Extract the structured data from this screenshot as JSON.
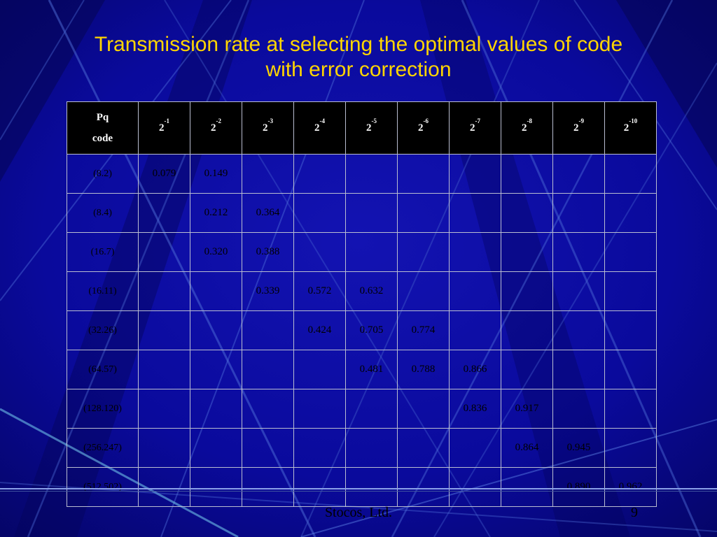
{
  "slide": {
    "title": {
      "line1": "Transmission rate at selecting the optimal values of code",
      "line2": "with error correction"
    },
    "footer": {
      "company": "Stocos, Ltd.",
      "page_number": "9"
    }
  },
  "table": {
    "corner_header": [
      "Pq",
      "code"
    ],
    "columns": [
      {
        "base": "2",
        "exp": "-1"
      },
      {
        "base": "2",
        "exp": "-2"
      },
      {
        "base": "2",
        "exp": "-3"
      },
      {
        "base": "2",
        "exp": "-4"
      },
      {
        "base": "2",
        "exp": "-5"
      },
      {
        "base": "2",
        "exp": "-6"
      },
      {
        "base": "2",
        "exp": "-7"
      },
      {
        "base": "2",
        "exp": "-8"
      },
      {
        "base": "2",
        "exp": "-9"
      },
      {
        "base": "2",
        "exp": "-10"
      }
    ],
    "rows": [
      {
        "label": "(8.2)",
        "values": [
          "0.079",
          "0.149",
          "",
          "",
          "",
          "",
          "",
          "",
          "",
          ""
        ]
      },
      {
        "label": "(8.4)",
        "values": [
          "",
          "0.212",
          "0.364",
          "",
          "",
          "",
          "",
          "",
          "",
          ""
        ]
      },
      {
        "label": "(16.7)",
        "values": [
          "",
          "0.320",
          "0.388",
          "",
          "",
          "",
          "",
          "",
          "",
          ""
        ]
      },
      {
        "label": "(16.11)",
        "values": [
          "",
          "",
          "0.339",
          "0.572",
          "0.632",
          "",
          "",
          "",
          "",
          ""
        ]
      },
      {
        "label": "(32.26)",
        "values": [
          "",
          "",
          "",
          "0.424",
          "0.705",
          "0.774",
          "",
          "",
          "",
          ""
        ]
      },
      {
        "label": "(64.57)",
        "values": [
          "",
          "",
          "",
          "",
          "0.481",
          "0.788",
          "0.866",
          "",
          "",
          ""
        ]
      },
      {
        "label": "(128.120)",
        "values": [
          "",
          "",
          "",
          "",
          "",
          "",
          "0.836",
          "0.917",
          "",
          ""
        ]
      },
      {
        "label": "(256.247)",
        "values": [
          "",
          "",
          "",
          "",
          "",
          "",
          "",
          "0.864",
          "0.945",
          ""
        ]
      },
      {
        "label": "(512.502)",
        "values": [
          "",
          "",
          "",
          "",
          "",
          "",
          "",
          "",
          "0.890",
          "0.962"
        ]
      }
    ]
  },
  "colors": {
    "background": "#0a0a9c",
    "title_text": "#ffd500",
    "header_bg": "#000000",
    "header_text": "#ffffff",
    "cell_text": "#000000",
    "table_border": "#b9bdd0",
    "divider": "#8aa0e8"
  }
}
